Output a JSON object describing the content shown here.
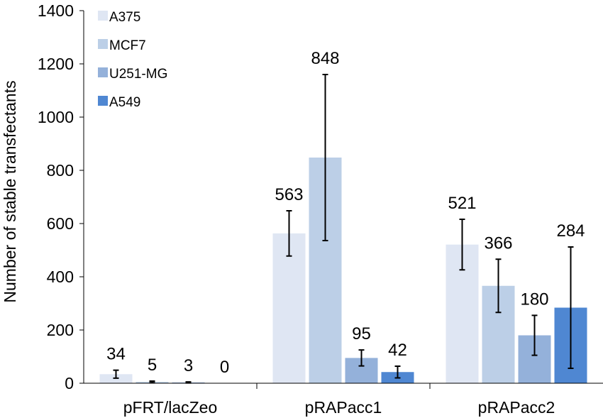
{
  "chart_data": {
    "type": "bar",
    "title": "",
    "xlabel": "",
    "ylabel": "Number of stable transfectants",
    "ylim": [
      0,
      1400
    ],
    "yticks": [
      0,
      200,
      400,
      600,
      800,
      1000,
      1200,
      1400
    ],
    "grid": false,
    "legend_position": "top-left",
    "categories": [
      "pFRT/lacZeo",
      "pRAPacc1",
      "pRAPacc2"
    ],
    "series": [
      {
        "name": "A375",
        "color": "#dfe6f3",
        "values": [
          34,
          563,
          521
        ],
        "errors": [
          15,
          85,
          95
        ],
        "labels": [
          "34",
          "563",
          "521"
        ]
      },
      {
        "name": "MCF7",
        "color": "#bccfe7",
        "values": [
          5,
          848,
          366
        ],
        "errors": [
          3,
          312,
          100
        ],
        "labels": [
          "5",
          "848",
          "366"
        ]
      },
      {
        "name": "U251-MG",
        "color": "#94b1da",
        "values": [
          3,
          95,
          180
        ],
        "errors": [
          2,
          30,
          75
        ],
        "labels": [
          "3",
          "95",
          "180"
        ]
      },
      {
        "name": "A549",
        "color": "#4f87d2",
        "values": [
          0,
          42,
          284
        ],
        "errors": [
          0,
          22,
          228
        ],
        "labels": [
          "0",
          "42",
          "284"
        ]
      }
    ]
  }
}
